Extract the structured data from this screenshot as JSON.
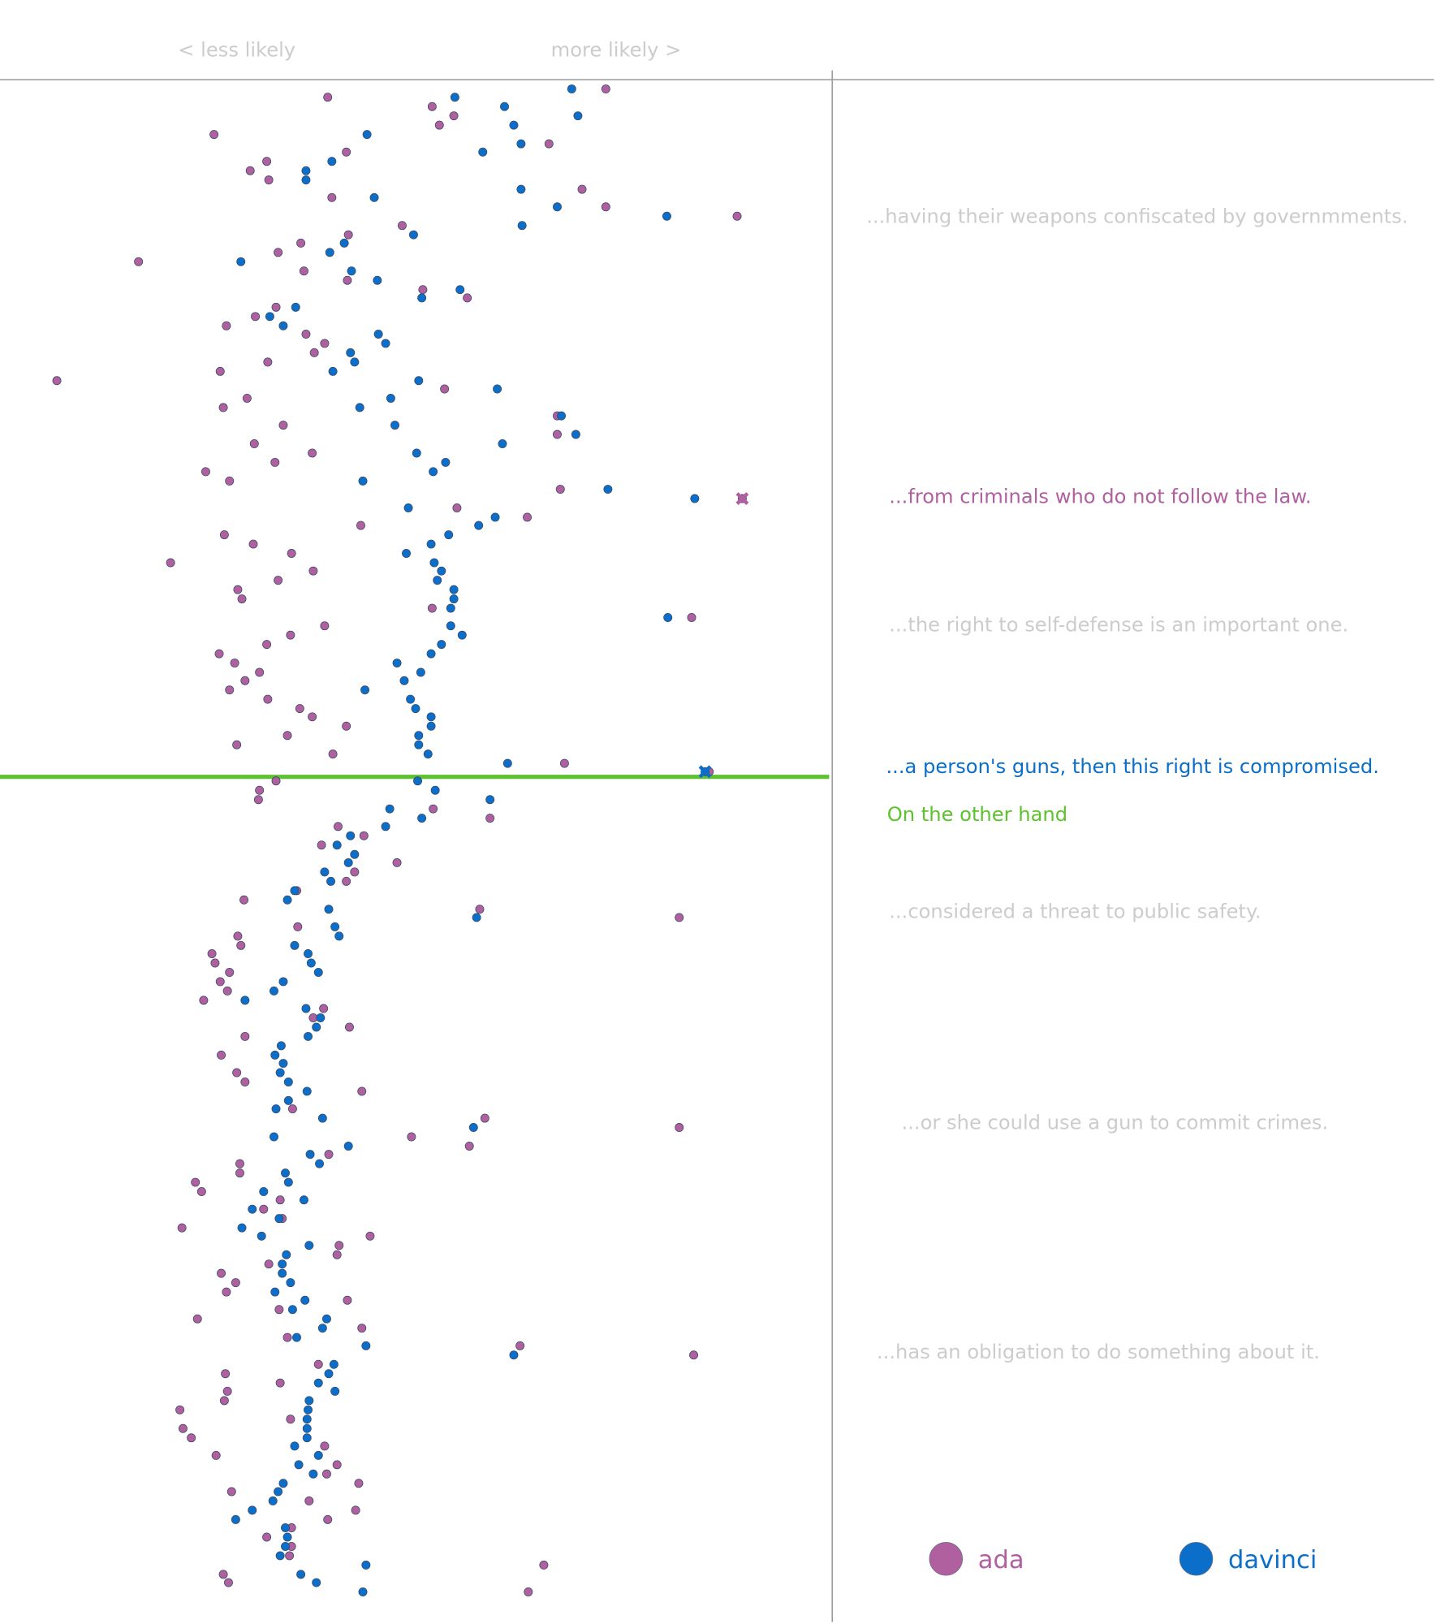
{
  "chart_data": {
    "type": "scatter",
    "x_axis_labels": [
      "< less likely",
      "more likely >"
    ],
    "xlim": [
      0,
      805
    ],
    "ylim": [
      1568,
      78
    ],
    "threshold_y": 751,
    "threshold_color": "#5cc22d",
    "annotations": [
      {
        "text": "...having their weapons confiscated by governmments.",
        "color": "#cccccc"
      },
      {
        "text": "...from criminals who do not follow the law.",
        "color": "#b0609f"
      },
      {
        "text": "...the right to self-defense is an important one.",
        "color": "#cccccc"
      },
      {
        "text": "...a person's guns, then this right is compromised.",
        "color": "#0b6fc9"
      },
      {
        "text": "On the other hand",
        "color": "#5cc22d"
      },
      {
        "text": "...considered a threat to public safety.",
        "color": "#cccccc"
      },
      {
        "text": "...or she could use a gun to commit crimes.",
        "color": "#cccccc"
      },
      {
        "text": "...has an obligation to do something about it.",
        "color": "#cccccc"
      }
    ],
    "series": [
      {
        "name": "ada",
        "color": "#b0609f",
        "highlight": {
          "x": 718,
          "y": 482
        },
        "x": [
          317,
          418,
          439,
          425,
          586,
          207,
          531,
          335,
          258,
          242,
          260,
          321,
          563,
          586,
          713,
          389,
          337,
          291,
          269,
          134,
          294,
          336,
          409,
          452,
          267,
          247,
          219,
          296,
          314,
          304,
          259,
          213,
          55,
          430,
          239,
          216,
          539,
          274,
          539,
          246,
          302,
          266,
          199,
          222,
          542,
          718,
          442,
          510,
          349,
          217,
          245,
          282,
          165,
          303,
          269,
          230,
          234,
          418,
          669,
          314,
          281,
          258,
          212,
          227,
          251,
          237,
          222,
          259,
          290,
          302,
          335,
          278,
          229,
          322,
          546,
          686,
          267,
          251,
          250,
          419,
          474,
          327,
          352,
          311,
          384,
          343,
          335,
          287,
          236,
          464,
          657,
          288,
          230,
          233,
          205,
          208,
          222,
          213,
          220,
          197,
          313,
          303,
          338,
          237,
          214,
          229,
          237,
          350,
          283,
          469,
          657,
          398,
          454,
          318,
          232,
          232,
          189,
          195,
          271,
          255,
          273,
          176,
          358,
          328,
          326,
          260,
          214,
          228,
          219,
          336,
          270,
          191,
          350,
          278,
          503,
          671,
          308,
          218,
          271,
          220,
          217,
          174,
          281,
          177,
          185,
          314,
          209,
          326,
          316,
          347,
          224,
          299,
          344,
          317,
          282,
          258,
          282,
          280,
          526,
          216,
          221,
          511
        ],
        "y": [
          94,
          103,
          112,
          121,
          86,
          130,
          139,
          147,
          156,
          165,
          174,
          191,
          183,
          200,
          209,
          218,
          227,
          235,
          244,
          253,
          262,
          271,
          280,
          288,
          297,
          306,
          315,
          323,
          332,
          341,
          350,
          359,
          368,
          376,
          385,
          394,
          402,
          411,
          420,
          429,
          438,
          447,
          456,
          465,
          473,
          482,
          491,
          500,
          508,
          517,
          526,
          535,
          544,
          552,
          561,
          570,
          579,
          588,
          597,
          605,
          614,
          623,
          632,
          641,
          650,
          658,
          667,
          676,
          685,
          693,
          702,
          711,
          720,
          729,
          738,
          746,
          755,
          764,
          773,
          782,
          791,
          799,
          808,
          817,
          834,
          843,
          852,
          861,
          870,
          879,
          887,
          896,
          905,
          914,
          922,
          931,
          940,
          949,
          958,
          967,
          975,
          984,
          993,
          1002,
          1020,
          1037,
          1046,
          1055,
          1072,
          1081,
          1090,
          1099,
          1108,
          1116,
          1125,
          1134,
          1143,
          1152,
          1160,
          1169,
          1178,
          1187,
          1195,
          1204,
          1213,
          1222,
          1231,
          1240,
          1249,
          1257,
          1266,
          1275,
          1284,
          1293,
          1301,
          1310,
          1319,
          1328,
          1337,
          1345,
          1354,
          1363,
          1372,
          1381,
          1390,
          1398,
          1407,
          1416,
          1425,
          1434,
          1442,
          1451,
          1460,
          1469,
          1477,
          1486,
          1495,
          1504,
          1513,
          1522,
          1530,
          1539
        ]
      },
      {
        "name": "davinci",
        "color": "#0b6fc9",
        "highlight": {
          "x": 682,
          "y": 746
        },
        "x": [
          553,
          440,
          488,
          559,
          497,
          355,
          504,
          467,
          321,
          296,
          296,
          504,
          362,
          539,
          645,
          505,
          400,
          333,
          319,
          233,
          340,
          365,
          445,
          408,
          286,
          261,
          274,
          366,
          373,
          339,
          343,
          322,
          405,
          481,
          378,
          348,
          543,
          382,
          557,
          486,
          403,
          431,
          419,
          351,
          588,
          672,
          395,
          479,
          463,
          434,
          417,
          393,
          420,
          427,
          423,
          439,
          439,
          436,
          646,
          436,
          447,
          427,
          417,
          384,
          407,
          391,
          353,
          397,
          402,
          417,
          417,
          405,
          405,
          414,
          491,
          682,
          404,
          421,
          474,
          377,
          373,
          408,
          339,
          326,
          343,
          337,
          314,
          320,
          285,
          278,
          318,
          461,
          324,
          328,
          285,
          298,
          301,
          308,
          274,
          265,
          237,
          296,
          310,
          306,
          298,
          272,
          266,
          274,
          271,
          279,
          297,
          279,
          267,
          312,
          458,
          265,
          337,
          300,
          309,
          276,
          279,
          255,
          294,
          244,
          270,
          234,
          253,
          299,
          277,
          273,
          273,
          281,
          266,
          295,
          283,
          316,
          312,
          287,
          354,
          497,
          323,
          318,
          308,
          324,
          299,
          298,
          297,
          297,
          297,
          285,
          308,
          289,
          303,
          274,
          269,
          264,
          244,
          228,
          276,
          278,
          276,
          271,
          354,
          291,
          306,
          351
        ],
        "y": [
          86,
          94,
          103,
          112,
          121,
          130,
          139,
          147,
          156,
          165,
          174,
          183,
          191,
          200,
          209,
          218,
          227,
          235,
          244,
          253,
          262,
          271,
          280,
          288,
          297,
          306,
          315,
          323,
          332,
          341,
          350,
          359,
          368,
          376,
          385,
          394,
          402,
          411,
          420,
          429,
          438,
          447,
          456,
          465,
          473,
          482,
          491,
          500,
          508,
          517,
          526,
          535,
          544,
          552,
          561,
          570,
          579,
          588,
          597,
          605,
          614,
          623,
          632,
          641,
          650,
          658,
          667,
          676,
          685,
          693,
          702,
          711,
          720,
          729,
          738,
          746,
          755,
          764,
          773,
          782,
          799,
          791,
          808,
          817,
          826,
          834,
          843,
          852,
          861,
          870,
          879,
          887,
          896,
          905,
          914,
          922,
          931,
          940,
          949,
          958,
          967,
          975,
          984,
          993,
          1002,
          1011,
          1020,
          1028,
          1037,
          1046,
          1055,
          1064,
          1072,
          1081,
          1090,
          1099,
          1108,
          1116,
          1125,
          1134,
          1143,
          1152,
          1160,
          1169,
          1178,
          1187,
          1195,
          1204,
          1213,
          1222,
          1231,
          1240,
          1249,
          1257,
          1266,
          1275,
          1284,
          1293,
          1301,
          1310,
          1319,
          1328,
          1337,
          1345,
          1354,
          1363,
          1372,
          1381,
          1390,
          1398,
          1407,
          1416,
          1425,
          1434,
          1442,
          1451,
          1460,
          1469,
          1477,
          1486,
          1495,
          1504,
          1513,
          1522,
          1530,
          1539
        ]
      }
    ]
  }
}
